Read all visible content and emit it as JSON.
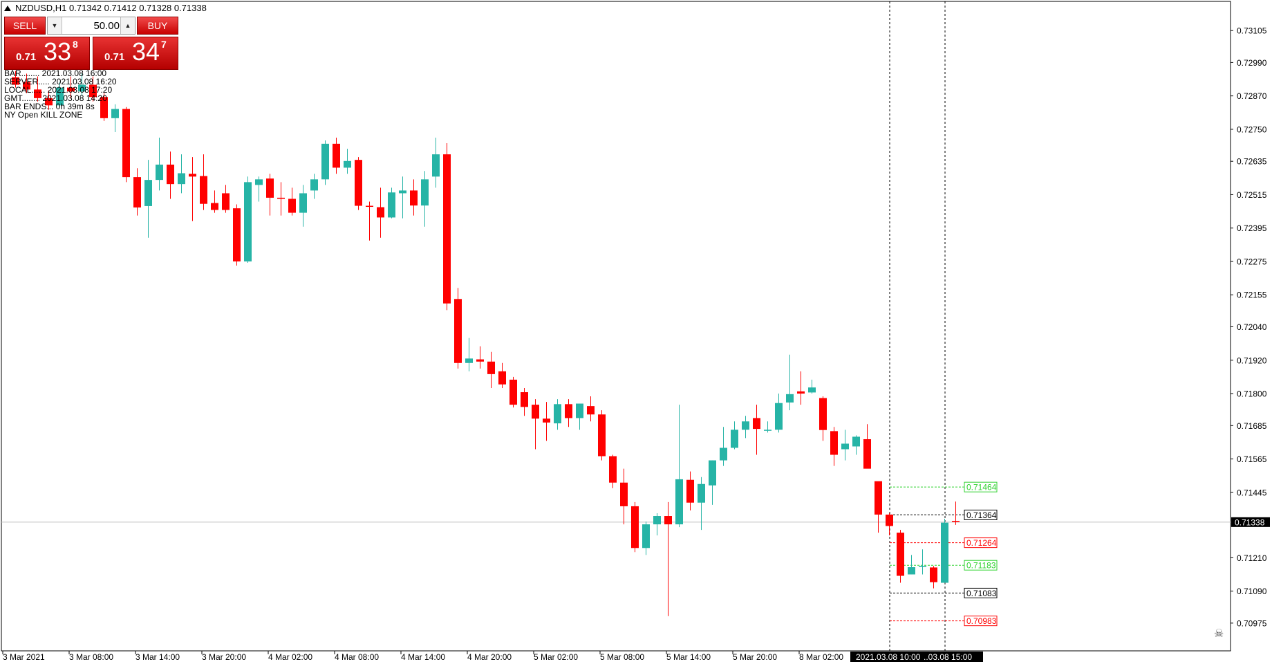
{
  "header": {
    "symbol_info": "NZDUSD,H1  0.71342 0.71412 0.71328 0.71338"
  },
  "trade_panel": {
    "sell_label": "SELL",
    "buy_label": "BUY",
    "lot_value": "50.00",
    "sell_price": {
      "small": "0.71",
      "big": "33",
      "sup": "8"
    },
    "buy_price": {
      "small": "0.71",
      "big": "34",
      "sup": "7"
    }
  },
  "info_lines": [
    "BAR........ 2021.03.08 16:00",
    "SERVER..... 2021.03.08 16:20",
    "LOCAL...... 2021.03.08 17:20",
    "GMT........ 2021.03.08 14:20",
    "BAR ENDS... 0h 39m 8s",
    "NY Open KILL ZONE"
  ],
  "chart_data": {
    "type": "candlestick",
    "symbol": "NZDUSD",
    "timeframe": "H1",
    "ylim": [
      0.70915,
      0.73165
    ],
    "y_ticks": [
      "0.73105",
      "0.72990",
      "0.72870",
      "0.72750",
      "0.72635",
      "0.72515",
      "0.72395",
      "0.72275",
      "0.72155",
      "0.72040",
      "0.71920",
      "0.71800",
      "0.71685",
      "0.71565",
      "0.71445",
      "0.71338",
      "0.71210",
      "0.71090",
      "0.70975"
    ],
    "x_ticks": [
      "3 Mar 2021",
      "3 Mar 08:00",
      "3 Mar 14:00",
      "3 Mar 20:00",
      "4 Mar 02:00",
      "4 Mar 08:00",
      "4 Mar 14:00",
      "4 Mar 20:00",
      "5 Mar 02:00",
      "5 Mar 08:00",
      "5 Mar 14:00",
      "5 Mar 20:00",
      "8 Mar 02:00"
    ],
    "x_highlight": "2021.03.08 10:00",
    "x_highlight2": "..03.08 15:00",
    "current_price": "0.71338",
    "level_labels": [
      {
        "value": 0.71464,
        "label": "0.71464",
        "color": "#2fd22f"
      },
      {
        "value": 0.71364,
        "label": "0.71364",
        "color": "#000000"
      },
      {
        "value": 0.71264,
        "label": "0.71264",
        "color": "#ff0000"
      },
      {
        "value": 0.71183,
        "label": "0.71183",
        "color": "#2fd22f"
      },
      {
        "value": 0.71083,
        "label": "0.71083",
        "color": "#000000"
      },
      {
        "value": 0.70983,
        "label": "0.70983",
        "color": "#ff0000"
      }
    ],
    "bull_color": "#26b4a6",
    "bear_color": "#ff0000",
    "candles": [
      [
        0.72937,
        0.7296,
        0.729,
        0.7291
      ],
      [
        0.7292,
        0.7295,
        0.7288,
        0.72893
      ],
      [
        0.72893,
        0.7294,
        0.7285,
        0.72862
      ],
      [
        0.72862,
        0.7289,
        0.7282,
        0.72836
      ],
      [
        0.72836,
        0.7292,
        0.7283,
        0.729
      ],
      [
        0.729,
        0.7294,
        0.7286,
        0.72886
      ],
      [
        0.72886,
        0.7295,
        0.7287,
        0.7291
      ],
      [
        0.7291,
        0.7294,
        0.7285,
        0.72866
      ],
      [
        0.72866,
        0.7288,
        0.7278,
        0.7279
      ],
      [
        0.7279,
        0.7284,
        0.7274,
        0.72823
      ],
      [
        0.72823,
        0.7283,
        0.7256,
        0.72578
      ],
      [
        0.72578,
        0.7261,
        0.7244,
        0.72469
      ],
      [
        0.72474,
        0.7264,
        0.7236,
        0.72568
      ],
      [
        0.72568,
        0.7272,
        0.7253,
        0.72623
      ],
      [
        0.72623,
        0.7267,
        0.725,
        0.72553
      ],
      [
        0.72553,
        0.7266,
        0.7252,
        0.72592
      ],
      [
        0.7259,
        0.7265,
        0.7242,
        0.7258
      ],
      [
        0.72582,
        0.7266,
        0.7246,
        0.72482
      ],
      [
        0.72485,
        0.7253,
        0.7245,
        0.7246
      ],
      [
        0.7252,
        0.7255,
        0.7245,
        0.7246
      ],
      [
        0.72466,
        0.7248,
        0.7226,
        0.72275
      ],
      [
        0.72275,
        0.7258,
        0.7227,
        0.7256
      ],
      [
        0.7255,
        0.7258,
        0.7249,
        0.7257
      ],
      [
        0.72573,
        0.7259,
        0.7244,
        0.72504
      ],
      [
        0.72504,
        0.7256,
        0.7244,
        0.725
      ],
      [
        0.725,
        0.7254,
        0.7244,
        0.7245
      ],
      [
        0.7245,
        0.7255,
        0.724,
        0.7252
      ],
      [
        0.7253,
        0.7259,
        0.725,
        0.7257
      ],
      [
        0.7257,
        0.7271,
        0.7255,
        0.72698
      ],
      [
        0.72698,
        0.7272,
        0.7259,
        0.72612
      ],
      [
        0.72612,
        0.7268,
        0.7259,
        0.72636
      ],
      [
        0.7264,
        0.7265,
        0.7246,
        0.72475
      ],
      [
        0.72475,
        0.7249,
        0.7235,
        0.72472
      ],
      [
        0.7247,
        0.7254,
        0.7236,
        0.72433
      ],
      [
        0.72433,
        0.7254,
        0.7243,
        0.72523
      ],
      [
        0.7252,
        0.7258,
        0.7243,
        0.7253
      ],
      [
        0.7253,
        0.7257,
        0.7244,
        0.72476
      ],
      [
        0.72476,
        0.726,
        0.724,
        0.7257
      ],
      [
        0.7258,
        0.7272,
        0.7254,
        0.7266
      ],
      [
        0.7266,
        0.727,
        0.721,
        0.72124
      ],
      [
        0.7214,
        0.7218,
        0.7189,
        0.7191
      ],
      [
        0.7191,
        0.72,
        0.7188,
        0.71926
      ],
      [
        0.71923,
        0.7197,
        0.7189,
        0.71915
      ],
      [
        0.71915,
        0.7195,
        0.7182,
        0.7187
      ],
      [
        0.7188,
        0.7191,
        0.7182,
        0.71833
      ],
      [
        0.7185,
        0.7186,
        0.7175,
        0.7176
      ],
      [
        0.71805,
        0.7182,
        0.7172,
        0.71752
      ],
      [
        0.7176,
        0.7178,
        0.716,
        0.7171
      ],
      [
        0.7171,
        0.7177,
        0.7163,
        0.71696
      ],
      [
        0.71693,
        0.7178,
        0.7167,
        0.71762
      ],
      [
        0.71762,
        0.7178,
        0.7168,
        0.71712
      ],
      [
        0.71712,
        0.7176,
        0.7167,
        0.71764
      ],
      [
        0.71755,
        0.7179,
        0.717,
        0.71725
      ],
      [
        0.71725,
        0.7174,
        0.7156,
        0.71575
      ],
      [
        0.71575,
        0.7158,
        0.7146,
        0.7148
      ],
      [
        0.7148,
        0.7153,
        0.7133,
        0.71395
      ],
      [
        0.71395,
        0.7141,
        0.7123,
        0.71245
      ],
      [
        0.71245,
        0.7134,
        0.7122,
        0.7133
      ],
      [
        0.7133,
        0.7137,
        0.7129,
        0.7136
      ],
      [
        0.7136,
        0.7141,
        0.71,
        0.7133
      ],
      [
        0.7133,
        0.7176,
        0.7132,
        0.71492
      ],
      [
        0.7149,
        0.7152,
        0.7138,
        0.71408
      ],
      [
        0.71408,
        0.715,
        0.7131,
        0.71475
      ],
      [
        0.7147,
        0.7156,
        0.714,
        0.7156
      ],
      [
        0.7156,
        0.7168,
        0.7154,
        0.71605
      ],
      [
        0.71605,
        0.717,
        0.716,
        0.7167
      ],
      [
        0.7167,
        0.7172,
        0.7164,
        0.717
      ],
      [
        0.71712,
        0.7176,
        0.7158,
        0.71673
      ],
      [
        0.71668,
        0.717,
        0.7166,
        0.7167
      ],
      [
        0.7167,
        0.718,
        0.7166,
        0.71766
      ],
      [
        0.71768,
        0.7194,
        0.7174,
        0.71798
      ],
      [
        0.71808,
        0.7188,
        0.7176,
        0.718
      ],
      [
        0.71804,
        0.7185,
        0.718,
        0.71822
      ],
      [
        0.71784,
        0.7179,
        0.7163,
        0.71669
      ],
      [
        0.71665,
        0.7168,
        0.7154,
        0.7158
      ],
      [
        0.716,
        0.7167,
        0.7156,
        0.7162
      ],
      [
        0.7161,
        0.7165,
        0.7158,
        0.71645
      ],
      [
        0.71636,
        0.7169,
        0.7154,
        0.7153
      ],
      [
        0.71485,
        0.7148,
        0.713,
        0.71365
      ],
      [
        0.71365,
        0.7137,
        0.7129,
        0.71324
      ],
      [
        0.713,
        0.7131,
        0.7112,
        0.71145
      ],
      [
        0.7115,
        0.7122,
        0.7115,
        0.71176
      ],
      [
        0.7118,
        0.7124,
        0.7115,
        0.7118
      ],
      [
        0.71175,
        0.7118,
        0.711,
        0.71122
      ],
      [
        0.7112,
        0.7135,
        0.7112,
        0.71336
      ],
      [
        0.71342,
        0.71412,
        0.71328,
        0.71338
      ]
    ]
  }
}
